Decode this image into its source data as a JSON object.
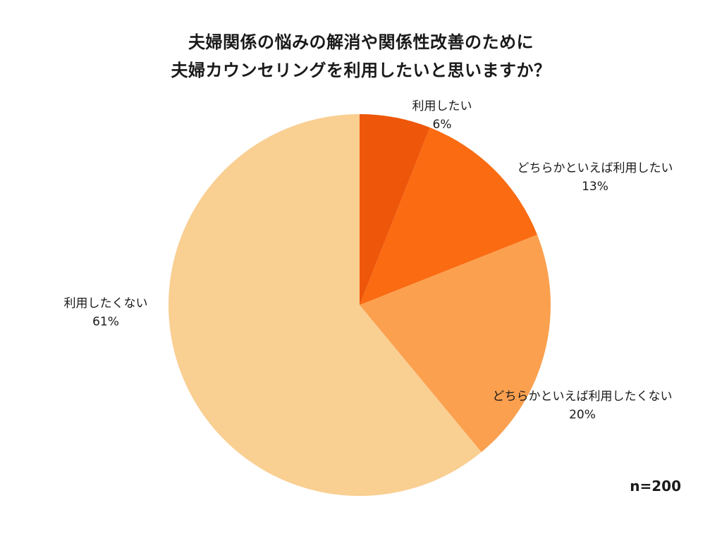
{
  "chart_data": {
    "type": "pie",
    "title": "夫婦関係の悩みの解消や関係性改善のために 夫婦カウンセリングを利用したいと思いますか？",
    "title_lines": [
      "夫婦関係の悩みの解消や関係性改善のために",
      "夫婦カウンセリングを利用したいと思いますか？"
    ],
    "categories": [
      "利用したい",
      "どちらかといえば利用したい",
      "どちらかといえば利用したくない",
      "利用したくない"
    ],
    "values": [
      6,
      13,
      20,
      61
    ],
    "unit": "%",
    "colors": [
      "#EE5609",
      "#FA6B12",
      "#FBA04F",
      "#F9CF92"
    ],
    "start_angle": "12 o'clock, clockwise",
    "sample_note": "n=200",
    "labels": [
      {
        "name": "利用したい",
        "pct": "6%"
      },
      {
        "name": "どちらかといえば利用したい",
        "pct": "13%"
      },
      {
        "name": "どちらかといえば利用したくない",
        "pct": "20%"
      },
      {
        "name": "利用したくない",
        "pct": "61%"
      }
    ]
  }
}
